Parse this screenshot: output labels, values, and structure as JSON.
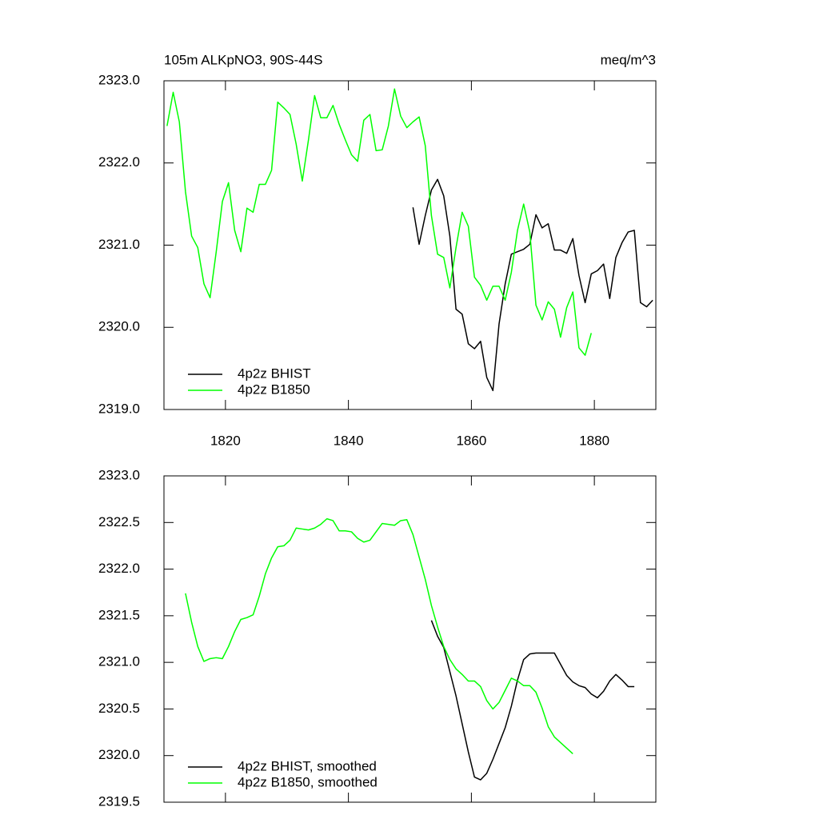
{
  "chart_data": [
    {
      "type": "line",
      "title": "105m ALKpNO3, 90S-44S",
      "units": "meq/m^3",
      "x": [
        1810.5,
        1811.5,
        1812.5,
        1813.5,
        1814.5,
        1815.5,
        1816.5,
        1817.5,
        1818.5,
        1819.5,
        1820.5,
        1821.5,
        1822.5,
        1823.5,
        1824.5,
        1825.5,
        1826.5,
        1827.5,
        1828.5,
        1829.5,
        1830.5,
        1831.5,
        1832.5,
        1833.5,
        1834.5,
        1835.5,
        1836.5,
        1837.5,
        1838.5,
        1839.5,
        1840.5,
        1841.5,
        1842.5,
        1843.5,
        1844.5,
        1845.5,
        1846.5,
        1847.5,
        1848.5,
        1849.5,
        1850.5,
        1851.5,
        1852.5,
        1853.5,
        1854.5,
        1855.5,
        1856.5,
        1857.5,
        1858.5,
        1859.5,
        1860.5,
        1861.5,
        1862.5,
        1863.5,
        1864.5,
        1865.5,
        1866.5,
        1867.5,
        1868.5,
        1869.5,
        1870.5,
        1871.5,
        1872.5,
        1873.5,
        1874.5,
        1875.5,
        1876.5,
        1877.5,
        1878.5,
        1879.5,
        1880.5,
        1881.5,
        1882.5,
        1883.5,
        1884.5,
        1885.5,
        1886.5,
        1887.5,
        1888.5,
        1889.5
      ],
      "xlim": [
        1810,
        1890
      ],
      "xticks": [
        1820,
        1840,
        1860,
        1880
      ],
      "xtick_labels": true,
      "ylim": [
        2319,
        2323
      ],
      "yticks": [
        {
          "value": 2319,
          "label": "2319.0"
        },
        {
          "value": 2320,
          "label": "2320.0"
        },
        {
          "value": 2321,
          "label": "2321.0"
        },
        {
          "value": 2322,
          "label": "2322.0"
        },
        {
          "value": 2323,
          "label": "2323.0"
        }
      ],
      "legend": "lower left",
      "series": [
        {
          "name": "4p2z BHIST",
          "color": "#000000",
          "values": [
            null,
            null,
            null,
            null,
            null,
            null,
            null,
            null,
            null,
            null,
            null,
            null,
            null,
            null,
            null,
            null,
            null,
            null,
            null,
            null,
            null,
            null,
            null,
            null,
            null,
            null,
            null,
            null,
            null,
            null,
            null,
            null,
            null,
            null,
            null,
            null,
            null,
            null,
            null,
            null,
            2321.46,
            2321.01,
            2321.36,
            2321.67,
            2321.8,
            2321.6,
            2321.11,
            2320.22,
            2320.16,
            2319.8,
            2319.74,
            2319.83,
            2319.39,
            2319.23,
            2320.04,
            2320.53,
            2320.89,
            2320.92,
            2320.95,
            2321.01,
            2321.37,
            2321.21,
            2321.26,
            2320.94,
            2320.94,
            2320.9,
            2321.08,
            2320.63,
            2320.3,
            2320.65,
            2320.69,
            2320.77,
            2320.35,
            2320.85,
            2321.03,
            2321.16,
            2321.18,
            2320.3,
            2320.25,
            2320.33
          ]
        },
        {
          "name": "4p2z B1850",
          "color": "#00ff00",
          "values": [
            2322.45,
            2322.86,
            2322.5,
            2321.65,
            2321.11,
            2320.97,
            2320.53,
            2320.36,
            2320.92,
            2321.53,
            2321.76,
            2321.18,
            2320.92,
            2321.45,
            2321.4,
            2321.74,
            2321.74,
            2321.91,
            2322.74,
            2322.67,
            2322.59,
            2322.23,
            2321.78,
            2322.28,
            2322.82,
            2322.55,
            2322.55,
            2322.7,
            2322.47,
            2322.28,
            2322.1,
            2322.02,
            2322.52,
            2322.59,
            2322.15,
            2322.16,
            2322.45,
            2322.9,
            2322.57,
            2322.43,
            2322.5,
            2322.56,
            2322.21,
            2321.36,
            2320.89,
            2320.85,
            2320.48,
            2320.97,
            2321.4,
            2321.23,
            2320.61,
            2320.51,
            2320.33,
            2320.5,
            2320.5,
            2320.33,
            2320.67,
            2321.18,
            2321.5,
            2321.16,
            2320.27,
            2320.09,
            2320.31,
            2320.22,
            2319.88,
            2320.24,
            2320.43,
            2319.75,
            2319.66,
            2319.93,
            null,
            null,
            null,
            null,
            null,
            null,
            null,
            null,
            null,
            null
          ]
        }
      ]
    },
    {
      "type": "line",
      "x": [
        1810.5,
        1811.5,
        1812.5,
        1813.5,
        1814.5,
        1815.5,
        1816.5,
        1817.5,
        1818.5,
        1819.5,
        1820.5,
        1821.5,
        1822.5,
        1823.5,
        1824.5,
        1825.5,
        1826.5,
        1827.5,
        1828.5,
        1829.5,
        1830.5,
        1831.5,
        1832.5,
        1833.5,
        1834.5,
        1835.5,
        1836.5,
        1837.5,
        1838.5,
        1839.5,
        1840.5,
        1841.5,
        1842.5,
        1843.5,
        1844.5,
        1845.5,
        1846.5,
        1847.5,
        1848.5,
        1849.5,
        1850.5,
        1851.5,
        1852.5,
        1853.5,
        1854.5,
        1855.5,
        1856.5,
        1857.5,
        1858.5,
        1859.5,
        1860.5,
        1861.5,
        1862.5,
        1863.5,
        1864.5,
        1865.5,
        1866.5,
        1867.5,
        1868.5,
        1869.5,
        1870.5,
        1871.5,
        1872.5,
        1873.5,
        1874.5,
        1875.5,
        1876.5,
        1877.5,
        1878.5,
        1879.5,
        1880.5,
        1881.5,
        1882.5,
        1883.5,
        1884.5,
        1885.5,
        1886.5,
        1887.5,
        1888.5,
        1889.5
      ],
      "xlim": [
        1810,
        1890
      ],
      "xticks": [
        1820,
        1840,
        1860,
        1880
      ],
      "xtick_labels": false,
      "ylim": [
        2319.5,
        2323
      ],
      "yticks": [
        {
          "value": 2319.5,
          "label": "2319.5"
        },
        {
          "value": 2320,
          "label": "2320.0"
        },
        {
          "value": 2320.5,
          "label": "2320.5"
        },
        {
          "value": 2321,
          "label": "2321.0"
        },
        {
          "value": 2321.5,
          "label": "2321.5"
        },
        {
          "value": 2322,
          "label": "2322.0"
        },
        {
          "value": 2322.5,
          "label": "2322.5"
        },
        {
          "value": 2323,
          "label": "2323.0"
        }
      ],
      "legend": "lower left",
      "series": [
        {
          "name": "4p2z BHIST, smoothed",
          "color": "#000000",
          "values": [
            null,
            null,
            null,
            null,
            null,
            null,
            null,
            null,
            null,
            null,
            null,
            null,
            null,
            null,
            null,
            null,
            null,
            null,
            null,
            null,
            null,
            null,
            null,
            null,
            null,
            null,
            null,
            null,
            null,
            null,
            null,
            null,
            null,
            null,
            null,
            null,
            null,
            null,
            null,
            null,
            null,
            null,
            null,
            2321.45,
            2321.28,
            2321.16,
            2320.9,
            2320.64,
            2320.34,
            2320.04,
            2319.77,
            2319.74,
            2319.81,
            2319.96,
            2320.13,
            2320.3,
            2320.53,
            2320.81,
            2321.03,
            2321.09,
            2321.1,
            2321.1,
            2321.1,
            2321.1,
            2320.98,
            2320.86,
            2320.79,
            2320.75,
            2320.73,
            2320.66,
            2320.62,
            2320.69,
            2320.8,
            2320.87,
            2320.81,
            2320.74,
            2320.74,
            null,
            null,
            null
          ]
        },
        {
          "name": "4p2z B1850, smoothed",
          "color": "#00ff00",
          "values": [
            null,
            null,
            null,
            2321.74,
            2321.43,
            2321.17,
            2321.01,
            2321.04,
            2321.05,
            2321.04,
            2321.17,
            2321.33,
            2321.46,
            2321.48,
            2321.51,
            2321.71,
            2321.95,
            2322.12,
            2322.24,
            2322.25,
            2322.31,
            2322.44,
            2322.43,
            2322.42,
            2322.44,
            2322.48,
            2322.54,
            2322.52,
            2322.41,
            2322.41,
            2322.4,
            2322.33,
            2322.29,
            2322.31,
            2322.4,
            2322.49,
            2322.48,
            2322.47,
            2322.52,
            2322.53,
            2322.37,
            2322.13,
            2321.89,
            2321.61,
            2321.38,
            2321.17,
            2321.03,
            2320.93,
            2320.87,
            2320.8,
            2320.8,
            2320.74,
            2320.59,
            2320.5,
            2320.57,
            2320.7,
            2320.83,
            2320.8,
            2320.75,
            2320.75,
            2320.68,
            2320.51,
            2320.31,
            2320.2,
            2320.14,
            2320.08,
            2320.02,
            null,
            null,
            null,
            null,
            null,
            null,
            null,
            null,
            null,
            null,
            null,
            null,
            null
          ]
        }
      ]
    }
  ]
}
